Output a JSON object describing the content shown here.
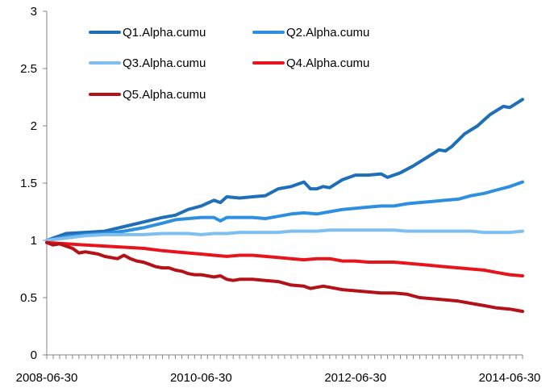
{
  "chart_data": {
    "type": "line",
    "title": "",
    "xlabel": "",
    "ylabel": "",
    "ylim": [
      0,
      3
    ],
    "yticks": [
      0,
      0.5,
      1,
      1.5,
      2,
      2.5,
      3
    ],
    "ytick_labels": [
      "0",
      "0.5",
      "1",
      "1.5",
      "2",
      "2.5",
      "3"
    ],
    "xlim": [
      0,
      74
    ],
    "xticks": [
      {
        "pos": 0,
        "label": "2008-06-30"
      },
      {
        "pos": 24,
        "label": "2010-06-30"
      },
      {
        "pos": 48,
        "label": "2012-06-30"
      },
      {
        "pos": 72,
        "label": "2014-06-30"
      }
    ],
    "minor_tick_count": 74,
    "grid": false,
    "legend_position": "top",
    "series": [
      {
        "name": "Q1.Alpha.cumu",
        "color": "#1F6FB8",
        "knots": [
          [
            0,
            1.0
          ],
          [
            3,
            1.06
          ],
          [
            6,
            1.07
          ],
          [
            9,
            1.08
          ],
          [
            12,
            1.12
          ],
          [
            15,
            1.16
          ],
          [
            18,
            1.2
          ],
          [
            20,
            1.22
          ],
          [
            22,
            1.27
          ],
          [
            24,
            1.3
          ],
          [
            26,
            1.35
          ],
          [
            27,
            1.33
          ],
          [
            28,
            1.38
          ],
          [
            30,
            1.37
          ],
          [
            32,
            1.38
          ],
          [
            34,
            1.39
          ],
          [
            36,
            1.45
          ],
          [
            38,
            1.47
          ],
          [
            40,
            1.51
          ],
          [
            41,
            1.45
          ],
          [
            42,
            1.45
          ],
          [
            43,
            1.47
          ],
          [
            44,
            1.46
          ],
          [
            46,
            1.53
          ],
          [
            48,
            1.57
          ],
          [
            50,
            1.57
          ],
          [
            52,
            1.58
          ],
          [
            53,
            1.55
          ],
          [
            55,
            1.59
          ],
          [
            57,
            1.65
          ],
          [
            59,
            1.72
          ],
          [
            61,
            1.79
          ],
          [
            62,
            1.78
          ],
          [
            63,
            1.82
          ],
          [
            65,
            1.93
          ],
          [
            67,
            2.0
          ],
          [
            69,
            2.1
          ],
          [
            71,
            2.17
          ],
          [
            72,
            2.16
          ],
          [
            74,
            2.23
          ]
        ]
      },
      {
        "name": "Q2.Alpha.cumu",
        "color": "#2E8FE0",
        "knots": [
          [
            0,
            1.0
          ],
          [
            3,
            1.03
          ],
          [
            6,
            1.05
          ],
          [
            9,
            1.06
          ],
          [
            12,
            1.08
          ],
          [
            15,
            1.11
          ],
          [
            18,
            1.15
          ],
          [
            20,
            1.18
          ],
          [
            22,
            1.19
          ],
          [
            24,
            1.2
          ],
          [
            26,
            1.2
          ],
          [
            27,
            1.17
          ],
          [
            28,
            1.2
          ],
          [
            30,
            1.2
          ],
          [
            32,
            1.2
          ],
          [
            34,
            1.19
          ],
          [
            36,
            1.21
          ],
          [
            38,
            1.23
          ],
          [
            40,
            1.24
          ],
          [
            42,
            1.23
          ],
          [
            44,
            1.25
          ],
          [
            46,
            1.27
          ],
          [
            48,
            1.28
          ],
          [
            50,
            1.29
          ],
          [
            52,
            1.3
          ],
          [
            54,
            1.3
          ],
          [
            56,
            1.32
          ],
          [
            58,
            1.33
          ],
          [
            60,
            1.34
          ],
          [
            62,
            1.35
          ],
          [
            64,
            1.36
          ],
          [
            66,
            1.39
          ],
          [
            68,
            1.41
          ],
          [
            70,
            1.44
          ],
          [
            72,
            1.47
          ],
          [
            74,
            1.51
          ]
        ]
      },
      {
        "name": "Q3.Alpha.cumu",
        "color": "#7FBFF0",
        "knots": [
          [
            0,
            1.0
          ],
          [
            3,
            1.02
          ],
          [
            6,
            1.04
          ],
          [
            9,
            1.05
          ],
          [
            12,
            1.05
          ],
          [
            15,
            1.05
          ],
          [
            18,
            1.06
          ],
          [
            20,
            1.06
          ],
          [
            22,
            1.06
          ],
          [
            24,
            1.05
          ],
          [
            26,
            1.06
          ],
          [
            28,
            1.06
          ],
          [
            30,
            1.07
          ],
          [
            32,
            1.07
          ],
          [
            34,
            1.07
          ],
          [
            36,
            1.07
          ],
          [
            38,
            1.08
          ],
          [
            40,
            1.08
          ],
          [
            42,
            1.08
          ],
          [
            44,
            1.09
          ],
          [
            46,
            1.09
          ],
          [
            48,
            1.09
          ],
          [
            50,
            1.09
          ],
          [
            52,
            1.09
          ],
          [
            54,
            1.09
          ],
          [
            56,
            1.08
          ],
          [
            58,
            1.08
          ],
          [
            60,
            1.08
          ],
          [
            62,
            1.08
          ],
          [
            64,
            1.08
          ],
          [
            66,
            1.08
          ],
          [
            68,
            1.07
          ],
          [
            70,
            1.07
          ],
          [
            72,
            1.07
          ],
          [
            74,
            1.08
          ]
        ]
      },
      {
        "name": "Q4.Alpha.cumu",
        "color": "#E8141C",
        "knots": [
          [
            0,
            0.98
          ],
          [
            3,
            0.97
          ],
          [
            6,
            0.96
          ],
          [
            9,
            0.95
          ],
          [
            12,
            0.94
          ],
          [
            15,
            0.93
          ],
          [
            18,
            0.91
          ],
          [
            20,
            0.9
          ],
          [
            22,
            0.89
          ],
          [
            24,
            0.88
          ],
          [
            26,
            0.87
          ],
          [
            28,
            0.86
          ],
          [
            30,
            0.87
          ],
          [
            32,
            0.87
          ],
          [
            34,
            0.86
          ],
          [
            36,
            0.85
          ],
          [
            38,
            0.84
          ],
          [
            40,
            0.83
          ],
          [
            42,
            0.84
          ],
          [
            44,
            0.84
          ],
          [
            46,
            0.82
          ],
          [
            48,
            0.82
          ],
          [
            50,
            0.81
          ],
          [
            52,
            0.81
          ],
          [
            54,
            0.81
          ],
          [
            56,
            0.8
          ],
          [
            58,
            0.79
          ],
          [
            60,
            0.78
          ],
          [
            62,
            0.77
          ],
          [
            64,
            0.76
          ],
          [
            66,
            0.75
          ],
          [
            68,
            0.74
          ],
          [
            70,
            0.72
          ],
          [
            72,
            0.7
          ],
          [
            74,
            0.69
          ]
        ]
      },
      {
        "name": "Q5.Alpha.cumu",
        "color": "#B41218",
        "knots": [
          [
            0,
            0.98
          ],
          [
            1,
            0.96
          ],
          [
            2,
            0.97
          ],
          [
            3,
            0.95
          ],
          [
            4,
            0.93
          ],
          [
            5,
            0.89
          ],
          [
            6,
            0.9
          ],
          [
            7,
            0.89
          ],
          [
            8,
            0.88
          ],
          [
            9,
            0.86
          ],
          [
            10,
            0.85
          ],
          [
            11,
            0.84
          ],
          [
            12,
            0.87
          ],
          [
            13,
            0.84
          ],
          [
            14,
            0.82
          ],
          [
            15,
            0.81
          ],
          [
            16,
            0.79
          ],
          [
            17,
            0.77
          ],
          [
            18,
            0.76
          ],
          [
            19,
            0.76
          ],
          [
            20,
            0.74
          ],
          [
            21,
            0.73
          ],
          [
            22,
            0.71
          ],
          [
            23,
            0.7
          ],
          [
            24,
            0.7
          ],
          [
            25,
            0.69
          ],
          [
            26,
            0.68
          ],
          [
            27,
            0.69
          ],
          [
            28,
            0.66
          ],
          [
            29,
            0.65
          ],
          [
            30,
            0.66
          ],
          [
            32,
            0.66
          ],
          [
            34,
            0.65
          ],
          [
            36,
            0.64
          ],
          [
            38,
            0.61
          ],
          [
            40,
            0.6
          ],
          [
            41,
            0.58
          ],
          [
            42,
            0.59
          ],
          [
            43,
            0.6
          ],
          [
            44,
            0.59
          ],
          [
            46,
            0.57
          ],
          [
            48,
            0.56
          ],
          [
            50,
            0.55
          ],
          [
            52,
            0.54
          ],
          [
            54,
            0.54
          ],
          [
            56,
            0.53
          ],
          [
            58,
            0.5
          ],
          [
            60,
            0.49
          ],
          [
            62,
            0.48
          ],
          [
            64,
            0.47
          ],
          [
            66,
            0.45
          ],
          [
            68,
            0.43
          ],
          [
            70,
            0.41
          ],
          [
            72,
            0.4
          ],
          [
            73,
            0.39
          ],
          [
            74,
            0.38
          ]
        ]
      }
    ]
  }
}
